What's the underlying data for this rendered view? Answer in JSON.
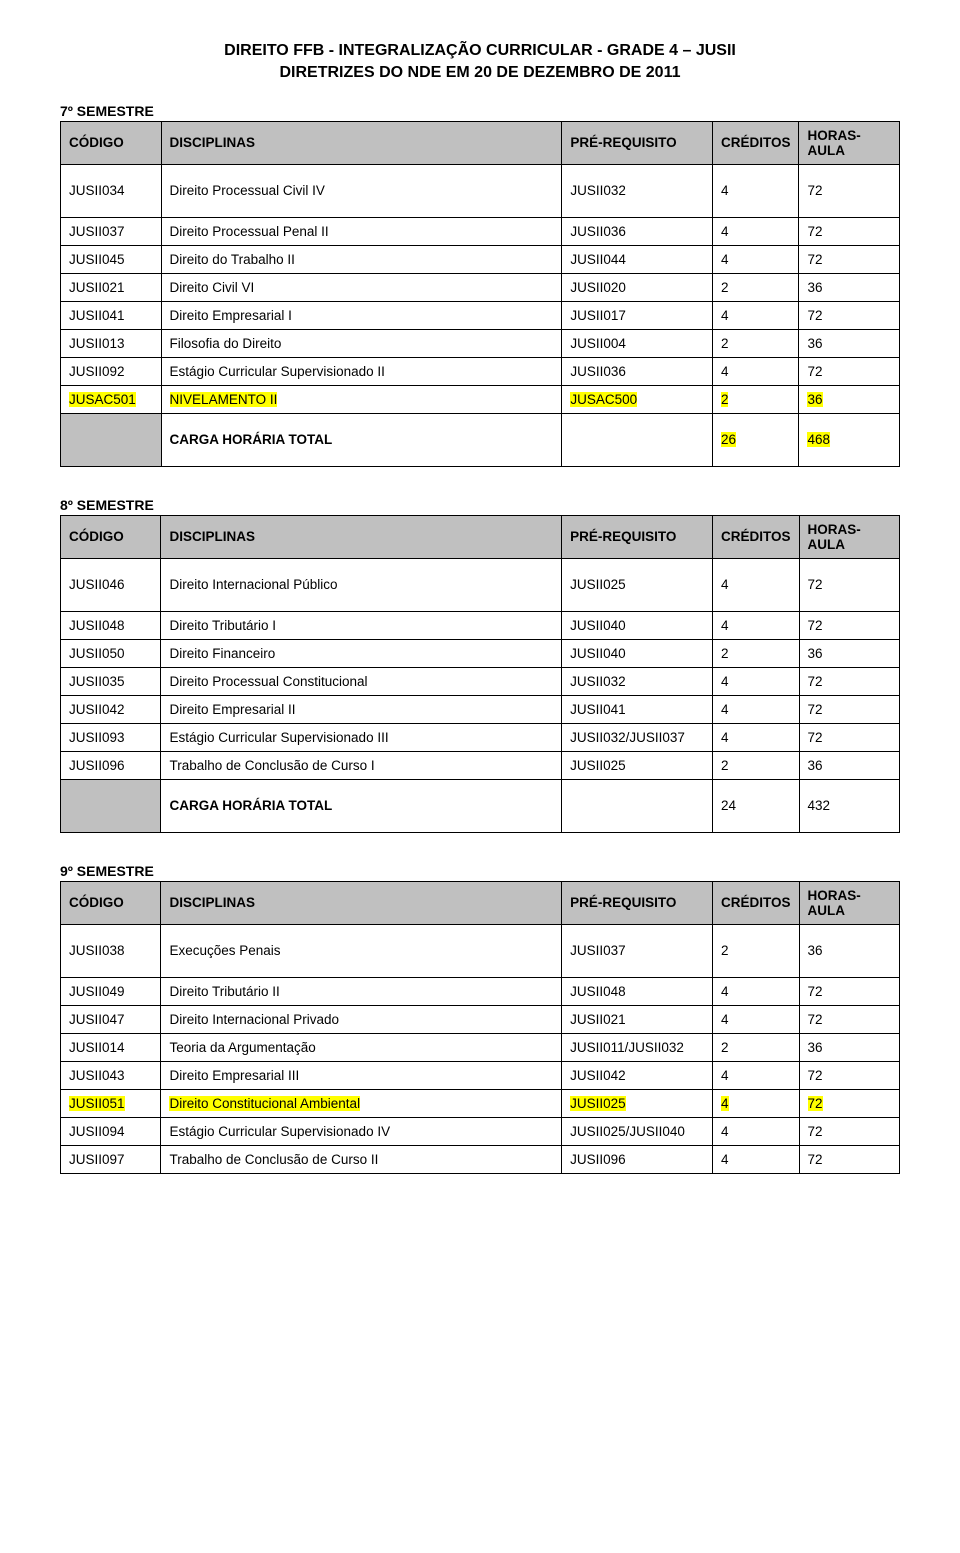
{
  "title_line1": "DIREITO FFB - INTEGRALIZAÇÃO CURRICULAR - GRADE 4 – JUSII",
  "title_line2": "DIRETRIZES DO NDE EM 20 DE DEZEMBRO DE 2011",
  "headers": {
    "codigo": "CÓDIGO",
    "disciplinas": "DISCIPLINAS",
    "prereq": "PRÉ-REQUISITO",
    "creditos": "CRÉDITOS",
    "horas": "HORAS-AULA"
  },
  "total_label": "CARGA HORÁRIA TOTAL",
  "sem7": {
    "label": "7º SEMESTRE",
    "rows": [
      {
        "codigo": "JUSII034",
        "disc": "Direito Processual Civil IV",
        "prereq": "JUSII032",
        "cred": "4",
        "horas": "72",
        "hl": false,
        "tall": true
      },
      {
        "codigo": "JUSII037",
        "disc": "Direito Processual Penal II",
        "prereq": "JUSII036",
        "cred": "4",
        "horas": "72",
        "hl": false,
        "tall": false
      },
      {
        "codigo": "JUSII045",
        "disc": "Direito do Trabalho II",
        "prereq": "JUSII044",
        "cred": "4",
        "horas": "72",
        "hl": false,
        "tall": false
      },
      {
        "codigo": "JUSII021",
        "disc": "Direito Civil VI",
        "prereq": "JUSII020",
        "cred": "2",
        "horas": "36",
        "hl": false,
        "tall": false
      },
      {
        "codigo": "JUSII041",
        "disc": "Direito Empresarial I",
        "prereq": "JUSII017",
        "cred": "4",
        "horas": "72",
        "hl": false,
        "tall": false
      },
      {
        "codigo": "JUSII013",
        "disc": "Filosofia do Direito",
        "prereq": "JUSII004",
        "cred": "2",
        "horas": "36",
        "hl": false,
        "tall": false
      },
      {
        "codigo": "JUSII092",
        "disc": "Estágio Curricular Supervisionado II",
        "prereq": "JUSII036",
        "cred": "4",
        "horas": "72",
        "hl": false,
        "tall": false
      },
      {
        "codigo": "JUSAC501",
        "disc": "NIVELAMENTO  II",
        "prereq": "JUSAC500",
        "cred": "2",
        "horas": "36",
        "hl": true,
        "tall": false
      }
    ],
    "total_cred": "26",
    "total_horas": "468",
    "total_hl": true
  },
  "sem8": {
    "label": "8º SEMESTRE",
    "rows": [
      {
        "codigo": "JUSII046",
        "disc": "Direito Internacional Público",
        "prereq": "JUSII025",
        "cred": "4",
        "horas": "72",
        "hl": false,
        "tall": true
      },
      {
        "codigo": "JUSII048",
        "disc": "Direito Tributário I",
        "prereq": "JUSII040",
        "cred": "4",
        "horas": "72",
        "hl": false,
        "tall": false
      },
      {
        "codigo": "JUSII050",
        "disc": "Direito Financeiro",
        "prereq": "JUSII040",
        "cred": "2",
        "horas": "36",
        "hl": false,
        "tall": false
      },
      {
        "codigo": "JUSII035",
        "disc": "Direito Processual Constitucional",
        "prereq": "JUSII032",
        "cred": "4",
        "horas": "72",
        "hl": false,
        "tall": false
      },
      {
        "codigo": "JUSII042",
        "disc": "Direito Empresarial II",
        "prereq": "JUSII041",
        "cred": "4",
        "horas": "72",
        "hl": false,
        "tall": false
      },
      {
        "codigo": "JUSII093",
        "disc": "Estágio Curricular Supervisionado III",
        "prereq": "JUSII032/JUSII037",
        "cred": "4",
        "horas": "72",
        "hl": false,
        "tall": false
      },
      {
        "codigo": "JUSII096",
        "disc": "Trabalho de Conclusão de Curso I",
        "prereq": "JUSII025",
        "cred": "2",
        "horas": "36",
        "hl": false,
        "tall": false
      }
    ],
    "total_cred": "24",
    "total_horas": "432",
    "total_hl": false
  },
  "sem9": {
    "label": "9º SEMESTRE",
    "rows": [
      {
        "codigo": "JUSII038",
        "disc": "Execuções Penais",
        "prereq": "JUSII037",
        "cred": "2",
        "horas": "36",
        "hl": false,
        "tall": true
      },
      {
        "codigo": "JUSII049",
        "disc": "Direito Tributário II",
        "prereq": "JUSII048",
        "cred": "4",
        "horas": "72",
        "hl": false,
        "tall": false
      },
      {
        "codigo": "JUSII047",
        "disc": "Direito Internacional Privado",
        "prereq": "JUSII021",
        "cred": "4",
        "horas": "72",
        "hl": false,
        "tall": false
      },
      {
        "codigo": "JUSII014",
        "disc": "Teoria da Argumentação",
        "prereq": "JUSII011/JUSII032",
        "cred": "2",
        "horas": "36",
        "hl": false,
        "tall": false
      },
      {
        "codigo": "JUSII043",
        "disc": "Direito Empresarial III",
        "prereq": "JUSII042",
        "cred": "4",
        "horas": "72",
        "hl": false,
        "tall": false
      },
      {
        "codigo": "JUSII051",
        "disc": "Direito Constitucional Ambiental",
        "prereq": "JUSII025",
        "cred": "4",
        "horas": "72",
        "hl": true,
        "tall": false
      },
      {
        "codigo": "JUSII094",
        "disc": "Estágio Curricular Supervisionado IV",
        "prereq": "JUSII025/JUSII040",
        "cred": "4",
        "horas": "72",
        "hl": false,
        "tall": false
      },
      {
        "codigo": "JUSII097",
        "disc": "Trabalho de Conclusão de Curso II",
        "prereq": "JUSII096",
        "cred": "4",
        "horas": "72",
        "hl": false,
        "tall": false
      }
    ]
  }
}
